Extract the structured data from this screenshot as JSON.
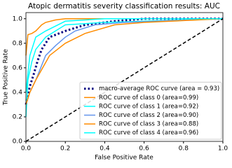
{
  "chart_data": {
    "type": "line",
    "title": "Atopic dermatitis severity classification results: AUC",
    "xlabel": "False Positive Rate",
    "ylabel": "True Positive Rate",
    "xlim": [
      0,
      1
    ],
    "ylim": [
      0,
      1.05
    ],
    "xticks": [
      {
        "value": 0,
        "label": "0.0"
      },
      0.2,
      0.4,
      0.6,
      0.8,
      {
        "value": 1,
        "label": "1.0"
      }
    ],
    "yticks": [
      {
        "value": 0,
        "label": "0.0"
      },
      0.2,
      0.4,
      0.6,
      0.8,
      {
        "value": 1,
        "label": "1.0"
      }
    ],
    "legend": "lower right",
    "series": [
      {
        "name": "macro-average ROC curve (area = 0.93)",
        "color": "navy",
        "style": "dotted",
        "x": [
          0,
          0.02,
          0.04,
          0.06,
          0.08,
          0.12,
          0.2,
          0.3,
          0.45,
          0.6,
          1
        ],
        "values": [
          0.3,
          0.45,
          0.55,
          0.66,
          0.75,
          0.85,
          0.9,
          0.95,
          0.98,
          1,
          1
        ]
      },
      {
        "name": "ROC curve of class 0 (area=0.99)",
        "color": "#ff8c00",
        "style": "solid",
        "x": [
          0,
          0.01,
          0.03,
          0.05,
          0.08,
          0.1,
          0.15,
          0.2,
          1
        ],
        "values": [
          0.7,
          0.87,
          0.88,
          0.9,
          0.95,
          0.97,
          0.99,
          1,
          1
        ]
      },
      {
        "name": "ROC curve of class 1 (area=0.92)",
        "color": "aqua",
        "style": "solid",
        "x": [
          0,
          0.01,
          0.03,
          0.05,
          0.1,
          0.15,
          0.2,
          0.4,
          0.6,
          1
        ],
        "values": [
          0.2,
          0.5,
          0.65,
          0.75,
          0.85,
          0.9,
          0.95,
          0.97,
          0.98,
          1
        ]
      },
      {
        "name": "ROC curve of class 2 (area=0.90)",
        "color": "cornflowerblue",
        "style": "solid",
        "x": [
          0,
          0.02,
          0.05,
          0.1,
          0.15,
          0.2,
          0.25,
          0.35,
          0.5,
          1
        ],
        "values": [
          0.3,
          0.4,
          0.5,
          0.7,
          0.78,
          0.85,
          0.9,
          0.95,
          0.97,
          1
        ]
      },
      {
        "name": "ROC curve of class 3 (area=0.88)",
        "color": "darkorange",
        "style": "solid",
        "x": [
          0,
          0.02,
          0.05,
          0.12,
          0.2,
          0.3,
          0.45,
          0.6,
          1
        ],
        "values": [
          0.3,
          0.4,
          0.5,
          0.7,
          0.8,
          0.88,
          0.95,
          0.97,
          1
        ]
      },
      {
        "name": "ROC curve of class 4 (area=0.96)",
        "color": "cyan",
        "style": "solid",
        "x": [
          0,
          0.02,
          0.05,
          0.1,
          0.2,
          0.4,
          1
        ],
        "values": [
          0.4,
          0.7,
          0.85,
          0.9,
          0.98,
          1,
          1
        ]
      },
      {
        "color": "black",
        "style": "dashed",
        "x": [
          0,
          1
        ],
        "values": [
          0,
          1
        ]
      }
    ]
  }
}
